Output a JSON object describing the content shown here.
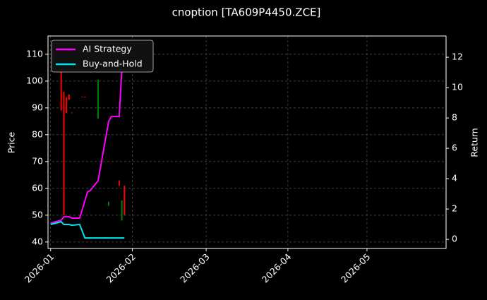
{
  "chart_data": {
    "type": "candlestick",
    "title": "cnoption [TA609P4450.ZCE]",
    "ylabel": "Price",
    "y2label": "Return",
    "x": [
      "2026-01-05",
      "2026-01-06",
      "2026-01-07",
      "2026-01-08",
      "2026-01-09",
      "2026-01-13",
      "2026-01-14",
      "2026-01-19",
      "2026-01-23",
      "2026-01-27",
      "2026-01-28",
      "2026-01-29"
    ],
    "open": [
      110,
      96,
      94,
      95,
      88.3,
      94.2,
      94.2,
      86,
      53.5,
      63,
      48,
      61
    ],
    "high": [
      110,
      96,
      94,
      95,
      88.3,
      94.2,
      94.2,
      100.5,
      55,
      63,
      55.5,
      61
    ],
    "low": [
      89,
      50,
      88,
      93,
      88,
      94,
      94,
      86,
      53.5,
      61,
      48,
      50
    ],
    "close": [
      89,
      50,
      88,
      93,
      88,
      94,
      94,
      100.5,
      55,
      61,
      55.5,
      50
    ],
    "up_color": "#008000",
    "down_color": "#ff0000",
    "series": [
      {
        "name": "AI Strategy",
        "color": "#ff00ff",
        "axis": "y2",
        "x": [
          "2026-01-01",
          "2026-01-05",
          "2026-01-06",
          "2026-01-08",
          "2026-01-09",
          "2026-01-12",
          "2026-01-15",
          "2026-01-16",
          "2026-01-19",
          "2026-01-23",
          "2026-01-24",
          "2026-01-27",
          "2026-01-28",
          "2026-01-29"
        ],
        "values": [
          1.07,
          1.26,
          1.49,
          1.49,
          1.4,
          1.4,
          3.12,
          3.21,
          3.86,
          7.77,
          8.09,
          8.09,
          11.1,
          12.8
        ]
      },
      {
        "name": "Buy-and-Hold",
        "color": "#00e5ee",
        "axis": "y2",
        "x": [
          "2026-01-01",
          "2026-01-05",
          "2026-01-06",
          "2026-01-08",
          "2026-01-09",
          "2026-01-12",
          "2026-01-14",
          "2026-01-29"
        ],
        "values": [
          0.98,
          1.16,
          0.98,
          0.98,
          0.93,
          0.98,
          0.09,
          0.09
        ]
      }
    ],
    "xlim": [
      "2025-12-31",
      "2026-05-31"
    ],
    "xticks": [
      {
        "value": "2026-01-01",
        "label": "2026-01"
      },
      {
        "value": "2026-02-01",
        "label": "2026-02"
      },
      {
        "value": "2026-03-01",
        "label": "2026-03"
      },
      {
        "value": "2026-04-01",
        "label": "2026-04"
      },
      {
        "value": "2026-05-01",
        "label": "2026-05"
      }
    ],
    "ylim": [
      37.6,
      116.8
    ],
    "yticks": [
      40,
      50,
      60,
      70,
      80,
      90,
      100,
      110
    ],
    "y2lim": [
      -0.6,
      13.4
    ],
    "y2ticks": [
      0,
      2,
      4,
      6,
      8,
      10,
      12
    ],
    "grid": true,
    "legend": "upper left"
  }
}
